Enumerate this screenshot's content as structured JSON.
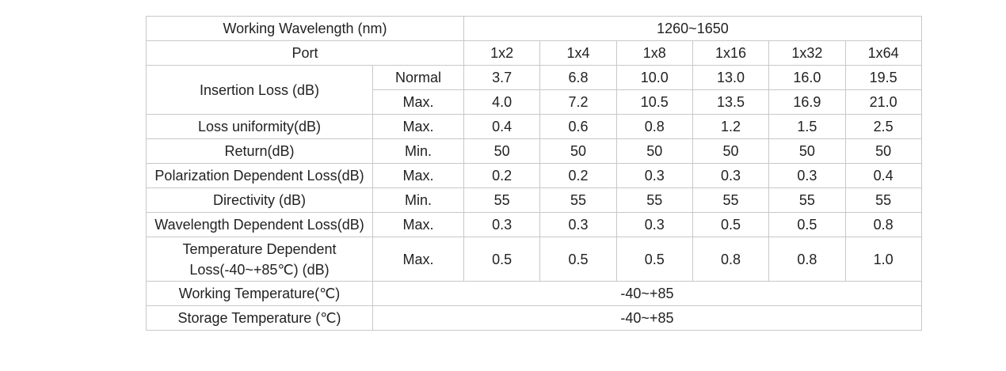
{
  "table": {
    "wavelength": {
      "label": "Working Wavelength (nm)",
      "value": "1260~1650"
    },
    "port": {
      "label": "Port",
      "values": [
        "1x2",
        "1x4",
        "1x8",
        "1x16",
        "1x32",
        "1x64"
      ]
    },
    "insertion_loss": {
      "label": "Insertion Loss (dB)",
      "rows": [
        {
          "condition": "Normal",
          "values": [
            "3.7",
            "6.8",
            "10.0",
            "13.0",
            "16.0",
            "19.5"
          ]
        },
        {
          "condition": "Max.",
          "values": [
            "4.0",
            "7.2",
            "10.5",
            "13.5",
            "16.9",
            "21.0"
          ]
        }
      ]
    },
    "specs": [
      {
        "label": "Loss uniformity(dB)",
        "condition": "Max.",
        "values": [
          "0.4",
          "0.6",
          "0.8",
          "1.2",
          "1.5",
          "2.5"
        ]
      },
      {
        "label": "Return(dB)",
        "condition": "Min.",
        "values": [
          "50",
          "50",
          "50",
          "50",
          "50",
          "50"
        ]
      },
      {
        "label": "Polarization Dependent Loss(dB)",
        "condition": "Max.",
        "values": [
          "0.2",
          "0.2",
          "0.3",
          "0.3",
          "0.3",
          "0.4"
        ]
      },
      {
        "label": "Directivity (dB)",
        "condition": "Min.",
        "values": [
          "55",
          "55",
          "55",
          "55",
          "55",
          "55"
        ]
      },
      {
        "label": "Wavelength Dependent Loss(dB)",
        "condition": "Max.",
        "values": [
          "0.3",
          "0.3",
          "0.3",
          "0.5",
          "0.5",
          "0.8"
        ]
      },
      {
        "label": "Temperature Dependent Loss(-40~+85℃) (dB)",
        "condition": "Max.",
        "values": [
          "0.5",
          "0.5",
          "0.5",
          "0.8",
          "0.8",
          "1.0"
        ]
      }
    ],
    "temperatures": [
      {
        "label": "Working Temperature(℃)",
        "value": "-40~+85"
      },
      {
        "label": "Storage Temperature (℃)",
        "value": "-40~+85"
      }
    ]
  }
}
